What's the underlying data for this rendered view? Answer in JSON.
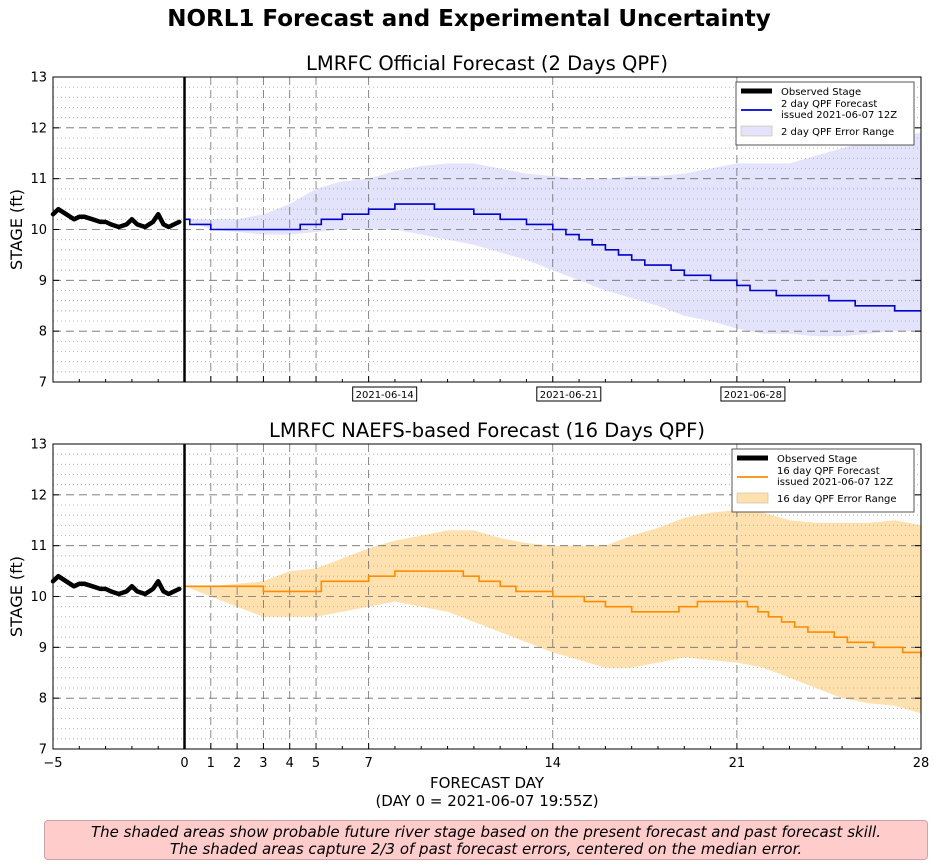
{
  "title": "NORL1 Forecast and Experimental Uncertainty",
  "footnote": {
    "line1": "The shaded areas show probable future river stage based on the present forecast and past forecast skill.",
    "line2": "The shaded areas capture 2/3 of past forecast errors, centered on the median error."
  },
  "colors": {
    "observed": "#000000",
    "official_line": "#0000cc",
    "official_band": "#e3e3fb",
    "naefs_line": "#ff8c00",
    "naefs_band": "#ffe1b0"
  },
  "chart_data": [
    {
      "type": "line",
      "title": "LMRFC Official Forecast (2 Days QPF)",
      "xlabel": "",
      "ylabel": "STAGE (ft)",
      "xlim": [
        -5,
        28
      ],
      "ylim": [
        7,
        13
      ],
      "yticks": [
        "7",
        "8",
        "9",
        "10",
        "11",
        "12",
        "13"
      ],
      "grid": true,
      "legend_position": "top-right",
      "date_labels": [
        {
          "x": 7.8,
          "label": "2021-06-14"
        },
        {
          "x": 14.8,
          "label": "2021-06-21"
        },
        {
          "x": 21.8,
          "label": "2021-06-28"
        }
      ],
      "legend": [
        {
          "kind": "observed",
          "label": "Observed Stage"
        },
        {
          "kind": "forecast",
          "label": "2 day QPF Forecast",
          "label2": "issued 2021-06-07 12Z"
        },
        {
          "kind": "band",
          "label": "2 day QPF Error Range"
        }
      ],
      "series": [
        {
          "name": "Observed Stage",
          "kind": "observed",
          "x": [
            -5,
            -4.8,
            -4.5,
            -4.2,
            -4.0,
            -3.8,
            -3.5,
            -3.2,
            -3.0,
            -2.8,
            -2.5,
            -2.2,
            -2.0,
            -1.8,
            -1.5,
            -1.2,
            -1.0,
            -0.8,
            -0.6,
            -0.4,
            -0.2
          ],
          "y": [
            10.3,
            10.4,
            10.3,
            10.2,
            10.25,
            10.25,
            10.2,
            10.15,
            10.15,
            10.1,
            10.05,
            10.1,
            10.2,
            10.1,
            10.05,
            10.15,
            10.3,
            10.1,
            10.05,
            10.1,
            10.15
          ]
        },
        {
          "name": "2 day QPF Forecast issued 2021-06-07 12Z",
          "kind": "forecast",
          "x": [
            0,
            0.2,
            1,
            1.6,
            2.5,
            3.5,
            4.4,
            5.2,
            6,
            7,
            8,
            9.5,
            11,
            12,
            13,
            14,
            14.5,
            15,
            15.5,
            16,
            16.5,
            17,
            17.5,
            18,
            18.5,
            19,
            19.5,
            20,
            20.5,
            21,
            21.5,
            22,
            22.5,
            23,
            24.5,
            25.5,
            27,
            28
          ],
          "y": [
            10.2,
            10.1,
            10.0,
            10.0,
            10.0,
            10.0,
            10.1,
            10.2,
            10.3,
            10.4,
            10.5,
            10.4,
            10.3,
            10.2,
            10.1,
            10.0,
            9.9,
            9.8,
            9.7,
            9.6,
            9.5,
            9.4,
            9.3,
            9.3,
            9.2,
            9.1,
            9.1,
            9.0,
            9.0,
            8.9,
            8.8,
            8.8,
            8.7,
            8.7,
            8.6,
            8.5,
            8.4,
            8.4
          ]
        },
        {
          "name": "2 day QPF Error Range",
          "kind": "band",
          "x": [
            0,
            1,
            2,
            3,
            4,
            5,
            6,
            7,
            8,
            9,
            10,
            11,
            12,
            13,
            14,
            15,
            16,
            17,
            18,
            19,
            20,
            21,
            22,
            23,
            24,
            25,
            26,
            27,
            28
          ],
          "lower": [
            10.2,
            10.0,
            9.95,
            9.9,
            9.9,
            9.95,
            10.0,
            10.0,
            10.0,
            9.9,
            9.8,
            9.7,
            9.55,
            9.4,
            9.2,
            9.0,
            8.8,
            8.65,
            8.5,
            8.3,
            8.2,
            8.05,
            7.95,
            7.95,
            7.9,
            7.9,
            7.95,
            8.0,
            8.0
          ],
          "upper": [
            10.2,
            10.2,
            10.2,
            10.3,
            10.5,
            10.8,
            10.95,
            11.0,
            11.15,
            11.25,
            11.3,
            11.3,
            11.2,
            11.1,
            11.05,
            11.0,
            11.0,
            11.05,
            11.05,
            11.1,
            11.2,
            11.3,
            11.3,
            11.3,
            11.45,
            11.6,
            11.75,
            11.85,
            11.9
          ]
        }
      ]
    },
    {
      "type": "line",
      "title": "LMRFC NAEFS-based Forecast (16 Days QPF)",
      "xlabel": "FORECAST DAY",
      "xlabel2": "(DAY 0 = 2021-06-07 19:55Z)",
      "ylabel": "STAGE (ft)",
      "xlim": [
        -5,
        28
      ],
      "ylim": [
        7,
        13
      ],
      "xticks": [
        {
          "x": -5,
          "label": "−5"
        },
        {
          "x": 0,
          "label": "0"
        },
        {
          "x": 1,
          "label": "1"
        },
        {
          "x": 2,
          "label": "2"
        },
        {
          "x": 3,
          "label": "3"
        },
        {
          "x": 4,
          "label": "4"
        },
        {
          "x": 5,
          "label": "5"
        },
        {
          "x": 7,
          "label": "7"
        },
        {
          "x": 14,
          "label": "14"
        },
        {
          "x": 21,
          "label": "21"
        },
        {
          "x": 28,
          "label": "28"
        }
      ],
      "yticks": [
        "7",
        "8",
        "9",
        "10",
        "11",
        "12",
        "13"
      ],
      "grid": true,
      "legend_position": "top-right",
      "legend": [
        {
          "kind": "observed",
          "label": "Observed Stage"
        },
        {
          "kind": "forecast",
          "label": "16 day QPF Forecast",
          "label2": "issued 2021-06-07 12Z"
        },
        {
          "kind": "band",
          "label": "16 day QPF Error Range"
        }
      ],
      "series": [
        {
          "name": "Observed Stage",
          "kind": "observed",
          "x": [
            -5,
            -4.8,
            -4.5,
            -4.2,
            -4.0,
            -3.8,
            -3.5,
            -3.2,
            -3.0,
            -2.8,
            -2.5,
            -2.2,
            -2.0,
            -1.8,
            -1.5,
            -1.2,
            -1.0,
            -0.8,
            -0.6,
            -0.4,
            -0.2
          ],
          "y": [
            10.3,
            10.4,
            10.3,
            10.2,
            10.25,
            10.25,
            10.2,
            10.15,
            10.15,
            10.1,
            10.05,
            10.1,
            10.2,
            10.1,
            10.05,
            10.15,
            10.3,
            10.1,
            10.05,
            10.1,
            10.15
          ]
        },
        {
          "name": "16 day QPF Forecast issued 2021-06-07 12Z",
          "kind": "forecast",
          "x": [
            0,
            1.8,
            3,
            3.5,
            5.2,
            6,
            7,
            8,
            10.6,
            11.2,
            12,
            12.6,
            13.5,
            14,
            14.6,
            15.2,
            16,
            17,
            18,
            18.8,
            19.5,
            20.5,
            21,
            21.4,
            21.8,
            22.2,
            22.7,
            23.2,
            23.7,
            24.2,
            24.7,
            25.2,
            25.7,
            26.2,
            26.7,
            27.3,
            27.7,
            28
          ],
          "y": [
            10.2,
            10.2,
            10.1,
            10.1,
            10.3,
            10.3,
            10.4,
            10.5,
            10.4,
            10.3,
            10.2,
            10.1,
            10.1,
            10.0,
            10.0,
            9.9,
            9.8,
            9.7,
            9.7,
            9.8,
            9.9,
            9.9,
            9.9,
            9.8,
            9.7,
            9.6,
            9.5,
            9.4,
            9.3,
            9.3,
            9.2,
            9.1,
            9.1,
            9.0,
            9.0,
            8.9,
            8.9,
            8.8
          ]
        },
        {
          "name": "16 day QPF Error Range",
          "kind": "band",
          "x": [
            0,
            1,
            2,
            3,
            4,
            5,
            6,
            7,
            8,
            9,
            10,
            11,
            12,
            13,
            14,
            15,
            16,
            17,
            18,
            19,
            20,
            21,
            22,
            23,
            24,
            25,
            26,
            27,
            28
          ],
          "lower": [
            10.2,
            10.0,
            9.8,
            9.6,
            9.6,
            9.6,
            9.7,
            9.8,
            9.9,
            9.8,
            9.7,
            9.5,
            9.3,
            9.1,
            8.9,
            8.75,
            8.6,
            8.6,
            8.7,
            8.8,
            8.75,
            8.7,
            8.6,
            8.4,
            8.2,
            8.0,
            7.9,
            7.85,
            7.7
          ],
          "upper": [
            10.2,
            10.2,
            10.25,
            10.3,
            10.5,
            10.55,
            10.75,
            10.95,
            11.1,
            11.2,
            11.3,
            11.3,
            11.15,
            11.05,
            11.0,
            11.0,
            11.0,
            11.2,
            11.35,
            11.55,
            11.65,
            11.7,
            11.65,
            11.5,
            11.45,
            11.45,
            11.45,
            11.5,
            11.4
          ]
        }
      ]
    }
  ]
}
